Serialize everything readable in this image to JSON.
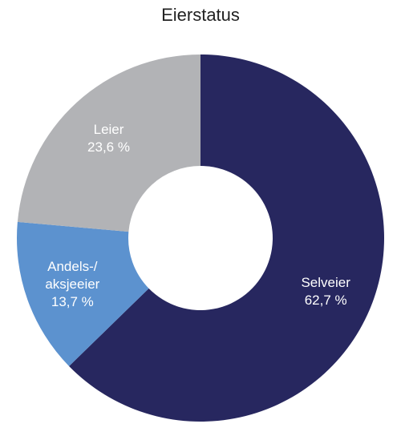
{
  "chart_data": {
    "type": "pie",
    "title": "Eierstatus",
    "slices": [
      {
        "label_lines": [
          "Selveier"
        ],
        "value": 62.7,
        "value_label": "62,7 %",
        "color": "#27275f"
      },
      {
        "label_lines": [
          "Andels-/",
          "aksjeeier"
        ],
        "value": 13.7,
        "value_label": "13,7 %",
        "color": "#5c92cf"
      },
      {
        "label_lines": [
          "Leier"
        ],
        "value": 23.6,
        "value_label": "23,6 %",
        "color": "#b2b3b6"
      }
    ],
    "donut": true,
    "legend": "none"
  }
}
